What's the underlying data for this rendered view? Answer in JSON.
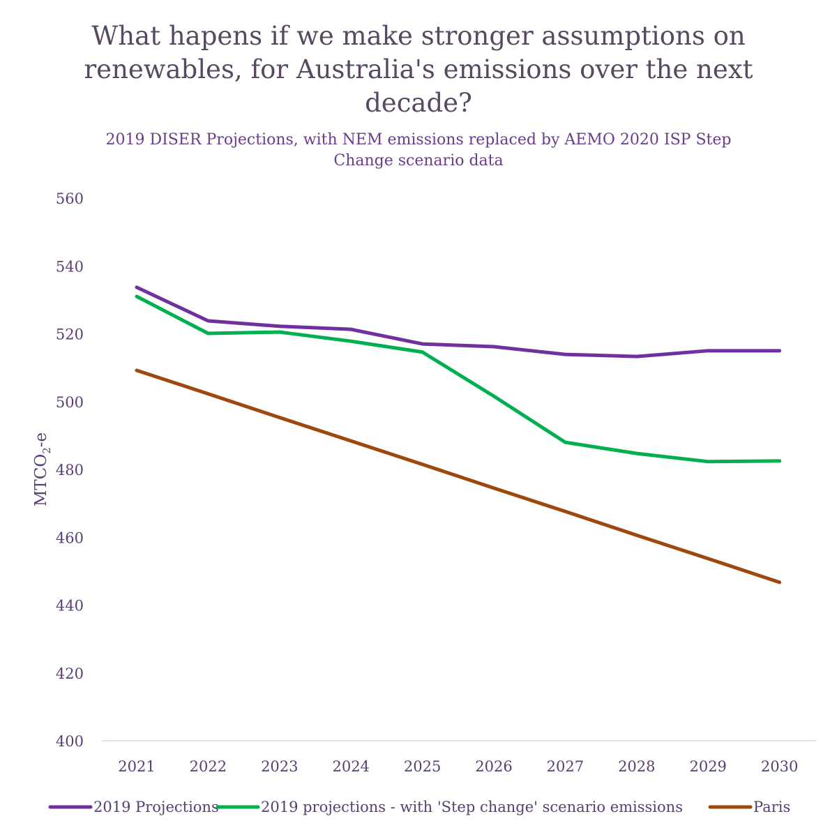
{
  "chart_data": {
    "type": "line",
    "title": "What hapens if we make stronger assumptions on renewables, for Australia's emissions over the next decade?",
    "subtitle": "2019 DISER Projections, with NEM emissions replaced by AEMO 2020 ISP Step Change scenario data",
    "ylabel": "MTCO2-e",
    "ylabel_main": "MTCO",
    "ylabel_sub": "2",
    "ylabel_suffix": "-e",
    "xlabel": "",
    "ylim": [
      400,
      560
    ],
    "yticks": [
      400,
      420,
      440,
      460,
      480,
      500,
      520,
      540,
      560
    ],
    "categories": [
      "2021",
      "2022",
      "2023",
      "2024",
      "2025",
      "2026",
      "2027",
      "2028",
      "2029",
      "2030"
    ],
    "grid": false,
    "legend_position": "bottom",
    "series": [
      {
        "name": "2019 Projections",
        "color": "#7030a0",
        "values": [
          533.7,
          523.8,
          522.2,
          521.3,
          517.0,
          516.2,
          513.9,
          513.3,
          515.0,
          515.0
        ]
      },
      {
        "name": "2019 projections - with 'Step change' scenario emissions",
        "color": "#00b050",
        "values": [
          531.0,
          520.1,
          520.5,
          517.8,
          514.6,
          501.6,
          488.0,
          484.7,
          482.3,
          482.5
        ]
      },
      {
        "name": "Paris",
        "color": "#9e480e",
        "values": [
          509.2,
          502.3,
          495.3,
          488.4,
          481.5,
          474.5,
          467.6,
          460.6,
          453.7,
          446.7
        ]
      }
    ]
  }
}
